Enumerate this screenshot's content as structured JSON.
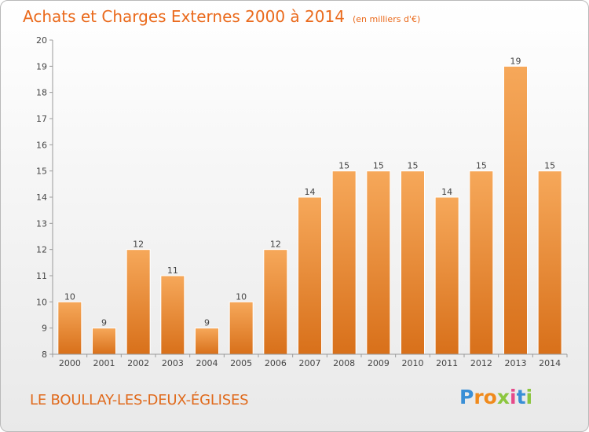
{
  "title": "Achats et Charges Externes 2000 à 2014",
  "unit": "(en milliers d'€)",
  "commune": "LE BOULLAY-LES-DEUX-ÉGLISES",
  "logo": {
    "letters": [
      "P",
      "r",
      "o",
      "x",
      "i",
      "t",
      "i"
    ],
    "colors": [
      "#3a8fd6",
      "#f08a1c",
      "#f08a1c",
      "#8cc63f",
      "#e64a8a",
      "#3a8fd6",
      "#8cc63f"
    ]
  },
  "colors": {
    "bar_top": "#f6a85a",
    "bar_bottom": "#d8701a",
    "accent": "#ea6a1c"
  },
  "chart_data": {
    "type": "bar",
    "categories": [
      "2000",
      "2001",
      "2002",
      "2003",
      "2004",
      "2005",
      "2006",
      "2007",
      "2008",
      "2009",
      "2010",
      "2011",
      "2012",
      "2013",
      "2014"
    ],
    "values": [
      10,
      9,
      12,
      11,
      9,
      10,
      12,
      14,
      15,
      15,
      15,
      14,
      15,
      19,
      15
    ],
    "ylim": [
      8,
      20
    ],
    "yticks": [
      8,
      9,
      10,
      11,
      12,
      13,
      14,
      15,
      16,
      17,
      18,
      19,
      20
    ],
    "grid": false,
    "legend": "none"
  }
}
